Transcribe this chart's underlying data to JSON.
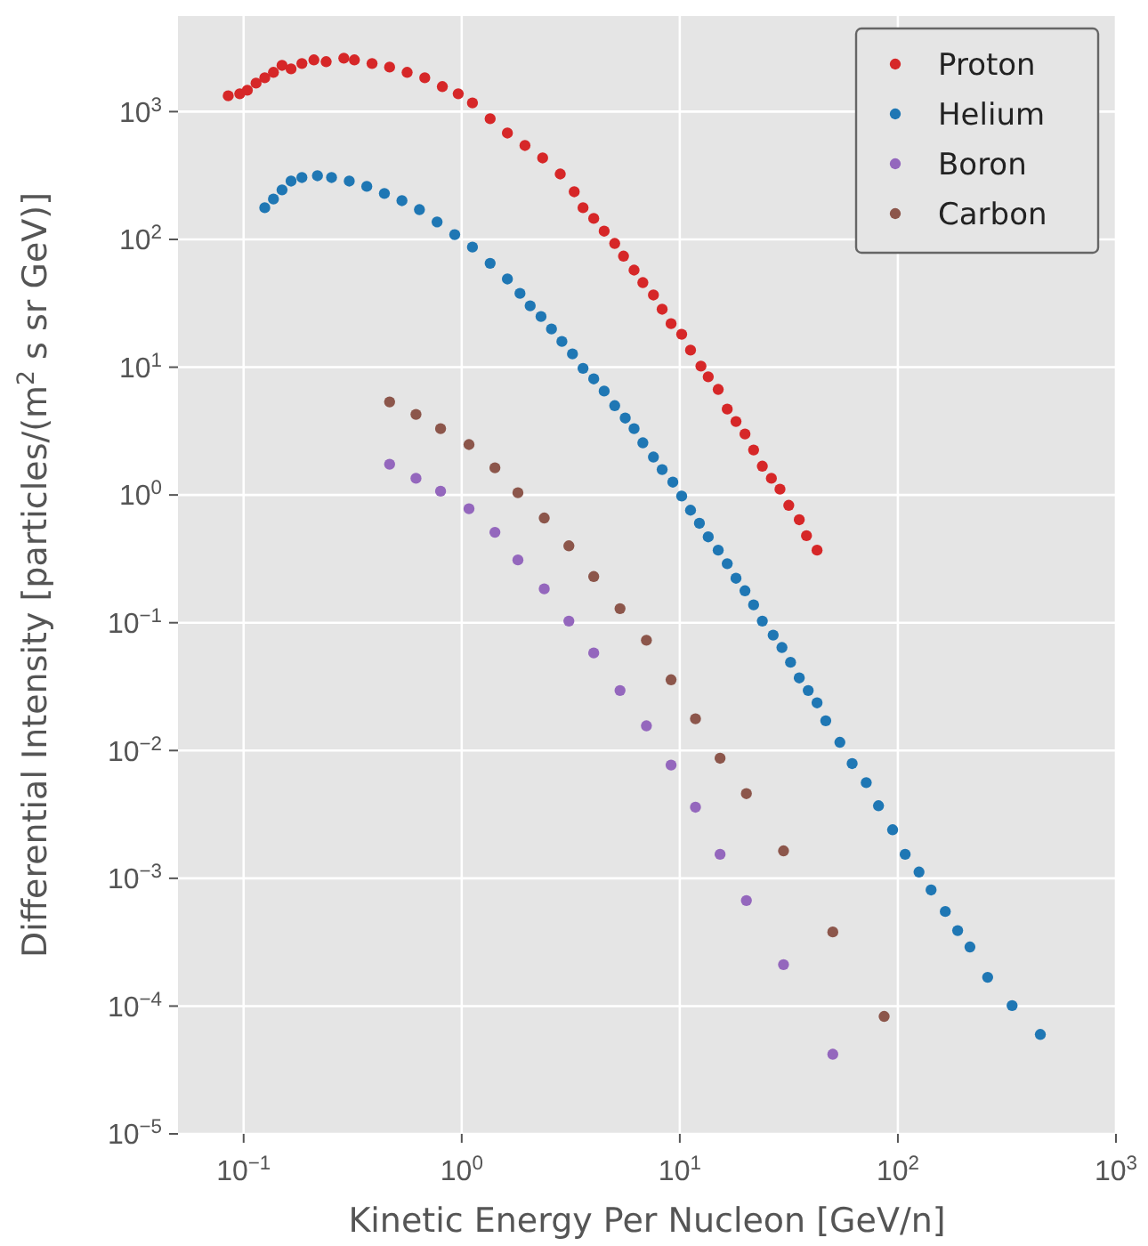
{
  "chart_data": {
    "type": "scatter",
    "xlabel": "Kinetic Energy Per Nucleon [GeV/n]",
    "ylabel": "Differential Intensity [particles/(m$^{2}$ s sr GeV)]",
    "log": "xy",
    "grid": true,
    "legend": "top right",
    "marker": "circle",
    "xlim": [
      0.05,
      1000
    ],
    "ylim": [
      1e-05,
      5600
    ],
    "xticks": [
      {
        "value": 0.1,
        "label": "10$^{−1}$"
      },
      {
        "value": 1,
        "label": "10$^{0}$"
      },
      {
        "value": 10,
        "label": "10$^{1}$"
      },
      {
        "value": 100,
        "label": "10$^{2}$"
      },
      {
        "value": 1000,
        "label": "10$^{3}$"
      }
    ],
    "yticks": [
      {
        "value": 1e-05,
        "label": "10$^{−5}$"
      },
      {
        "value": 0.0001,
        "label": "10$^{−4}$"
      },
      {
        "value": 0.001,
        "label": "10$^{−3}$"
      },
      {
        "value": 0.01,
        "label": "10$^{−2}$"
      },
      {
        "value": 0.1,
        "label": "10$^{−1}$"
      },
      {
        "value": 1,
        "label": "10$^{0}$"
      },
      {
        "value": 10,
        "label": "10$^{1}$"
      },
      {
        "value": 100,
        "label": "10$^{2}$"
      },
      {
        "value": 1000,
        "label": "10$^{3}$"
      }
    ],
    "series": [
      {
        "name": "Proton",
        "color": "#d62728",
        "x": [
          0.085,
          0.096,
          0.104,
          0.114,
          0.125,
          0.137,
          0.15,
          0.165,
          0.185,
          0.21,
          0.239,
          0.288,
          0.322,
          0.388,
          0.467,
          0.562,
          0.677,
          0.815,
          0.964,
          1.12,
          1.35,
          1.62,
          1.95,
          2.35,
          2.83,
          3.28,
          3.6,
          4.03,
          4.5,
          5.03,
          5.52,
          6.17,
          6.77,
          7.57,
          8.3,
          9.12,
          10.2,
          11.2,
          12.5,
          13.5,
          15.0,
          16.5,
          18.1,
          19.9,
          21.8,
          23.9,
          26.3,
          28.8,
          31.6,
          35.3,
          38.1,
          42.6
        ],
        "values": [
          1330,
          1380,
          1470,
          1670,
          1840,
          2030,
          2300,
          2160,
          2380,
          2540,
          2460,
          2620,
          2540,
          2380,
          2230,
          2030,
          1840,
          1570,
          1380,
          1170,
          880,
          680,
          543,
          434,
          325,
          236,
          177,
          146,
          116,
          93,
          74,
          57.5,
          45.9,
          36.7,
          28.4,
          21.9,
          18.1,
          13.6,
          10.2,
          8.4,
          6.7,
          4.7,
          3.76,
          3.0,
          2.25,
          1.68,
          1.35,
          1.11,
          0.83,
          0.64,
          0.48,
          0.37
        ]
      },
      {
        "name": "Helium",
        "color": "#1f77b4",
        "x": [
          0.125,
          0.137,
          0.15,
          0.165,
          0.185,
          0.218,
          0.253,
          0.305,
          0.367,
          0.442,
          0.532,
          0.64,
          0.771,
          0.929,
          1.12,
          1.35,
          1.62,
          1.85,
          2.06,
          2.31,
          2.58,
          2.88,
          3.22,
          3.6,
          4.03,
          4.5,
          5.03,
          5.62,
          6.17,
          6.77,
          7.57,
          8.3,
          9.29,
          10.2,
          11.2,
          12.3,
          13.5,
          15.0,
          16.5,
          18.1,
          19.9,
          21.8,
          23.9,
          26.8,
          29.4,
          32.2,
          35.3,
          38.8,
          42.6,
          46.7,
          54.2,
          61.7,
          71.6,
          81.5,
          94.6,
          108,
          125,
          142,
          165,
          188,
          214,
          258,
          334,
          450
        ],
        "values": [
          177,
          207,
          244,
          286,
          305,
          315,
          305,
          286,
          260,
          229,
          201,
          171,
          137,
          109,
          87,
          65,
          49,
          37.8,
          30.2,
          24.9,
          19.9,
          15.9,
          12.7,
          9.8,
          8.1,
          6.5,
          5.0,
          4.0,
          3.3,
          2.56,
          1.98,
          1.58,
          1.26,
          0.98,
          0.76,
          0.6,
          0.47,
          0.37,
          0.29,
          0.223,
          0.178,
          0.138,
          0.103,
          0.08,
          0.064,
          0.049,
          0.037,
          0.0295,
          0.0236,
          0.0171,
          0.0116,
          0.0079,
          0.0056,
          0.0037,
          0.0024,
          0.00154,
          0.00112,
          0.00081,
          0.00055,
          0.00039,
          0.00029,
          0.000168,
          0.000101,
          6e-05
        ]
      },
      {
        "name": "Boron",
        "color": "#9467bd",
        "x": [
          0.467,
          0.617,
          0.8,
          1.08,
          1.42,
          1.81,
          2.39,
          3.1,
          4.03,
          5.32,
          7.03,
          9.12,
          11.8,
          15.3,
          20.2,
          29.9,
          50.3
        ],
        "values": [
          1.74,
          1.35,
          1.07,
          0.78,
          0.51,
          0.31,
          0.184,
          0.103,
          0.058,
          0.0295,
          0.0156,
          0.0077,
          0.0036,
          0.00154,
          0.00067,
          0.000211,
          4.2e-05
        ]
      },
      {
        "name": "Carbon",
        "color": "#8c564b",
        "x": [
          0.467,
          0.617,
          0.8,
          1.08,
          1.42,
          1.81,
          2.39,
          3.1,
          4.03,
          5.32,
          7.03,
          9.12,
          11.8,
          15.3,
          20.2,
          29.9,
          50.3,
          86.5
        ],
        "values": [
          5.35,
          4.27,
          3.3,
          2.48,
          1.63,
          1.04,
          0.66,
          0.4,
          0.23,
          0.129,
          0.073,
          0.0358,
          0.0177,
          0.0087,
          0.0046,
          0.00164,
          0.00038,
          8.3e-05
        ]
      }
    ]
  }
}
